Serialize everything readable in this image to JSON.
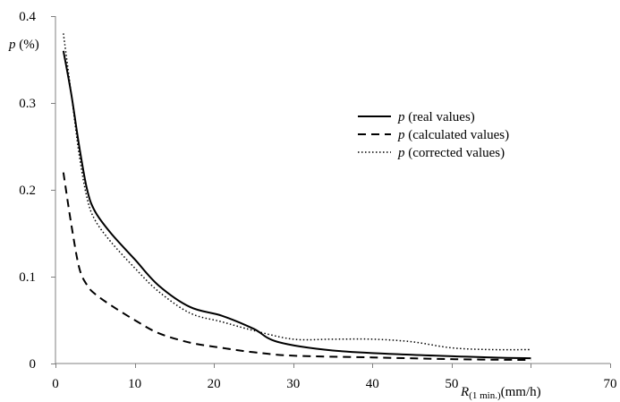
{
  "chart_data": {
    "type": "line",
    "ylabel": {
      "var": "p",
      "unit": " (%)"
    },
    "xlabel": {
      "var": "R",
      "sub": "(1 min.)",
      "unit": "(mm/h)"
    },
    "xlim": [
      0,
      70
    ],
    "ylim": [
      0,
      0.4
    ],
    "x_ticks": [
      0,
      10,
      20,
      30,
      40,
      50,
      60,
      70
    ],
    "x_tick_labels": [
      "0",
      "10",
      "20",
      "30",
      "40",
      "50",
      "",
      "70"
    ],
    "y_ticks": [
      0,
      0.1,
      0.2,
      0.3,
      0.4
    ],
    "y_tick_labels": [
      "0",
      "0.1",
      "0.2",
      "0.3",
      "0.4"
    ],
    "grid": false,
    "legend_position": "right",
    "colors": {
      "line": "#000000",
      "axis": "#808080"
    },
    "series": [
      {
        "var": "p",
        "name": " (real values)",
        "style": "solid",
        "x": [
          1,
          2,
          3,
          4,
          5,
          7,
          10,
          13,
          17,
          21,
          25,
          28,
          35,
          45,
          55,
          60
        ],
        "y": [
          0.36,
          0.31,
          0.25,
          0.2,
          0.175,
          0.15,
          0.12,
          0.09,
          0.065,
          0.055,
          0.04,
          0.025,
          0.015,
          0.01,
          0.007,
          0.006
        ]
      },
      {
        "var": "p",
        "name": " (calculated values)",
        "style": "dashed",
        "x": [
          1,
          2,
          3,
          4,
          5,
          7,
          10,
          13,
          17,
          21,
          25,
          30,
          40,
          50,
          60
        ],
        "y": [
          0.22,
          0.16,
          0.11,
          0.09,
          0.08,
          0.067,
          0.05,
          0.035,
          0.024,
          0.018,
          0.013,
          0.009,
          0.007,
          0.005,
          0.004
        ]
      },
      {
        "var": "p",
        "name": " (corrected values)",
        "style": "dotted",
        "x": [
          1,
          2,
          3,
          4,
          5,
          7,
          10,
          13,
          17,
          21,
          25,
          30,
          35,
          40,
          45,
          50,
          55,
          60
        ],
        "y": [
          0.38,
          0.31,
          0.24,
          0.19,
          0.165,
          0.14,
          0.11,
          0.083,
          0.058,
          0.048,
          0.038,
          0.028,
          0.028,
          0.028,
          0.025,
          0.018,
          0.016,
          0.016
        ]
      }
    ]
  }
}
